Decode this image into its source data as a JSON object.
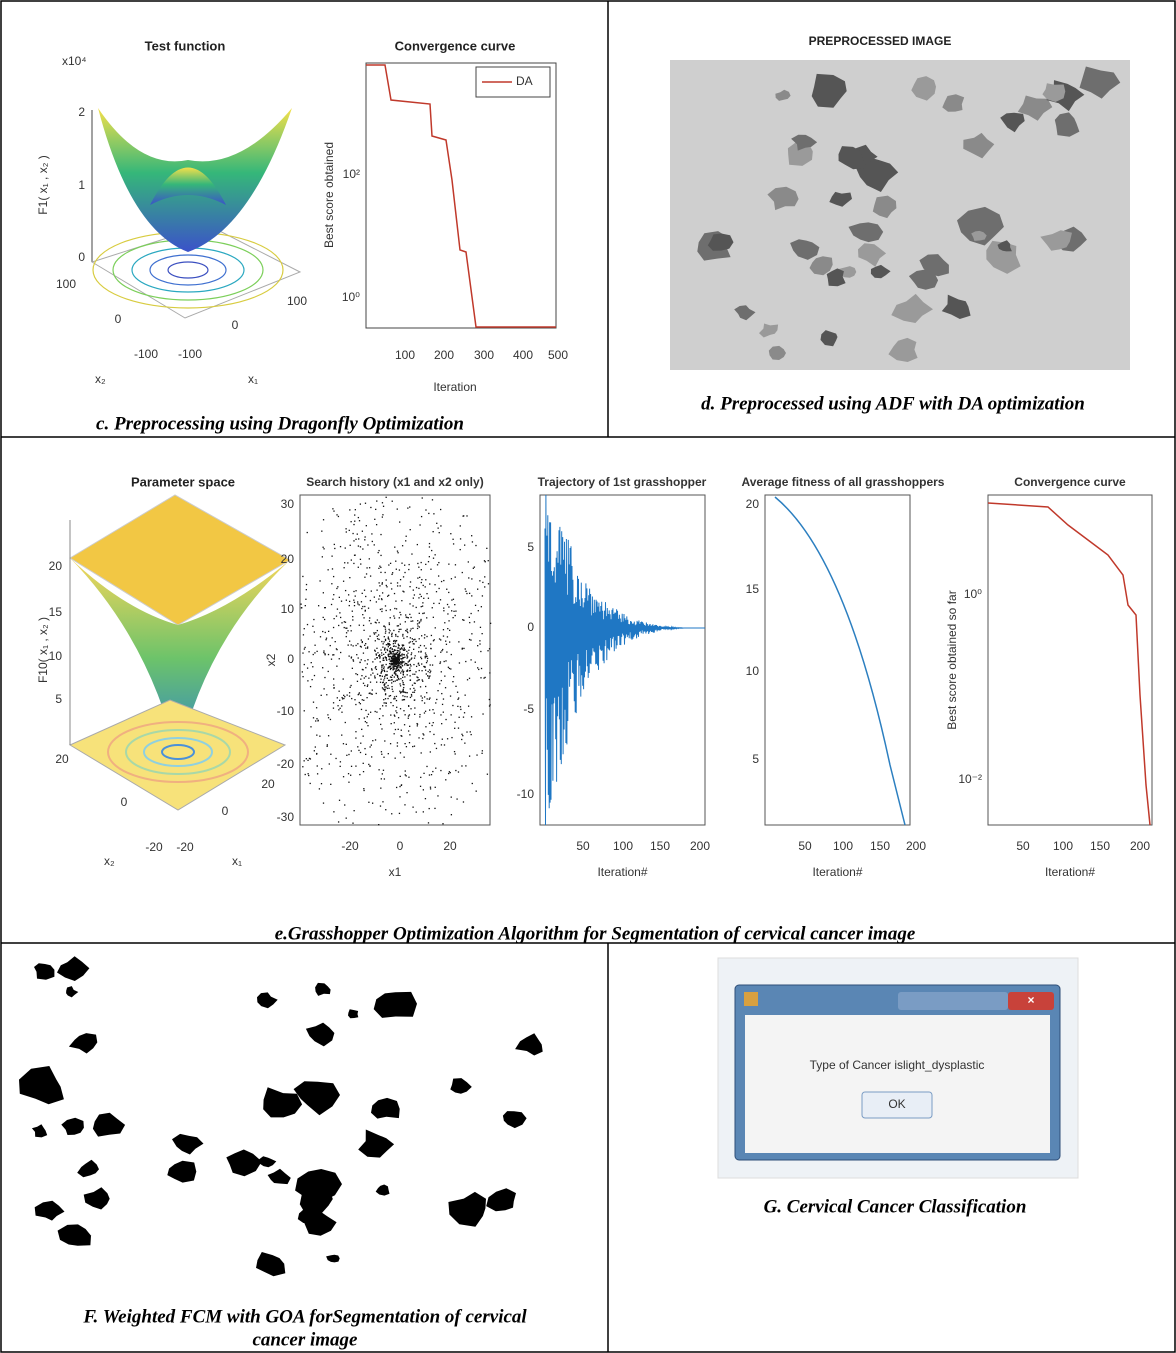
{
  "panels": {
    "c": {
      "caption": "c. Preprocessing using Dragonfly Optimization",
      "test_function": {
        "title": "Test function",
        "zlabel": "F1( x₁ , x₂ )",
        "zscale": "x10⁴",
        "zticks": [
          "2",
          "1",
          "0"
        ],
        "x2ticks": [
          "100",
          "0",
          "-100"
        ],
        "x1ticks": [
          "-100",
          "0",
          "100"
        ],
        "x2label": "x₂",
        "x1label": "x₁"
      },
      "convergence": {
        "title": "Convergence curve",
        "ylabel": "Best score obtained",
        "yticks": [
          "10²",
          "10⁰"
        ],
        "xticks": [
          "100",
          "200",
          "300",
          "400",
          "500"
        ],
        "xlabel": "Iteration",
        "legend": "DA"
      }
    },
    "d": {
      "title": "PREPROCESSED IMAGE",
      "caption": "d. Preprocessed using ADF with DA optimization"
    },
    "e": {
      "caption": "e.Grasshopper Optimization Algorithm for Segmentation of cervical cancer image",
      "parameter_space": {
        "title": "Parameter space",
        "zlabel": "F10( x₁ , x₂ )",
        "zticks": [
          "20",
          "15",
          "10",
          "5"
        ],
        "x2ticks": [
          "20",
          "0",
          "-20"
        ],
        "x1ticks": [
          "-20",
          "0",
          "20"
        ],
        "x2label": "x₂",
        "x1label": "x₁"
      },
      "search_history": {
        "title": "Search history (x1 and x2 only)",
        "ylabel": "x2",
        "xlabel": "x1",
        "yticks": [
          "30",
          "20",
          "10",
          "0",
          "-10",
          "-20",
          "-30"
        ],
        "xticks": [
          "-20",
          "0",
          "20"
        ]
      },
      "trajectory": {
        "title": "Trajectory of 1st grasshopper",
        "xlabel": "Iteration#",
        "yticks": [
          "5",
          "0",
          "-5",
          "-10"
        ],
        "xticks": [
          "50",
          "100",
          "150",
          "200"
        ]
      },
      "average_fitness": {
        "title": "Average fitness of all grasshoppers",
        "xlabel": "Iteration#",
        "yticks": [
          "20",
          "15",
          "10",
          "5"
        ],
        "xticks": [
          "50",
          "100",
          "150",
          "200"
        ]
      },
      "convergence": {
        "title": "Convergence curve",
        "ylabel": "Best score obtained so far",
        "xlabel": "Iteration#",
        "yticks": [
          "10⁰",
          "10⁻²"
        ],
        "xticks": [
          "50",
          "100",
          "150",
          "200"
        ]
      }
    },
    "f": {
      "caption_lines": [
        "F. Weighted FCM with GOA forSegmentation of cervical",
        "cancer image"
      ]
    },
    "g": {
      "dialog_text": "Type of Cancer islight_dysplastic",
      "button": "OK",
      "caption": "G. Cervical Cancer Classification"
    }
  }
}
